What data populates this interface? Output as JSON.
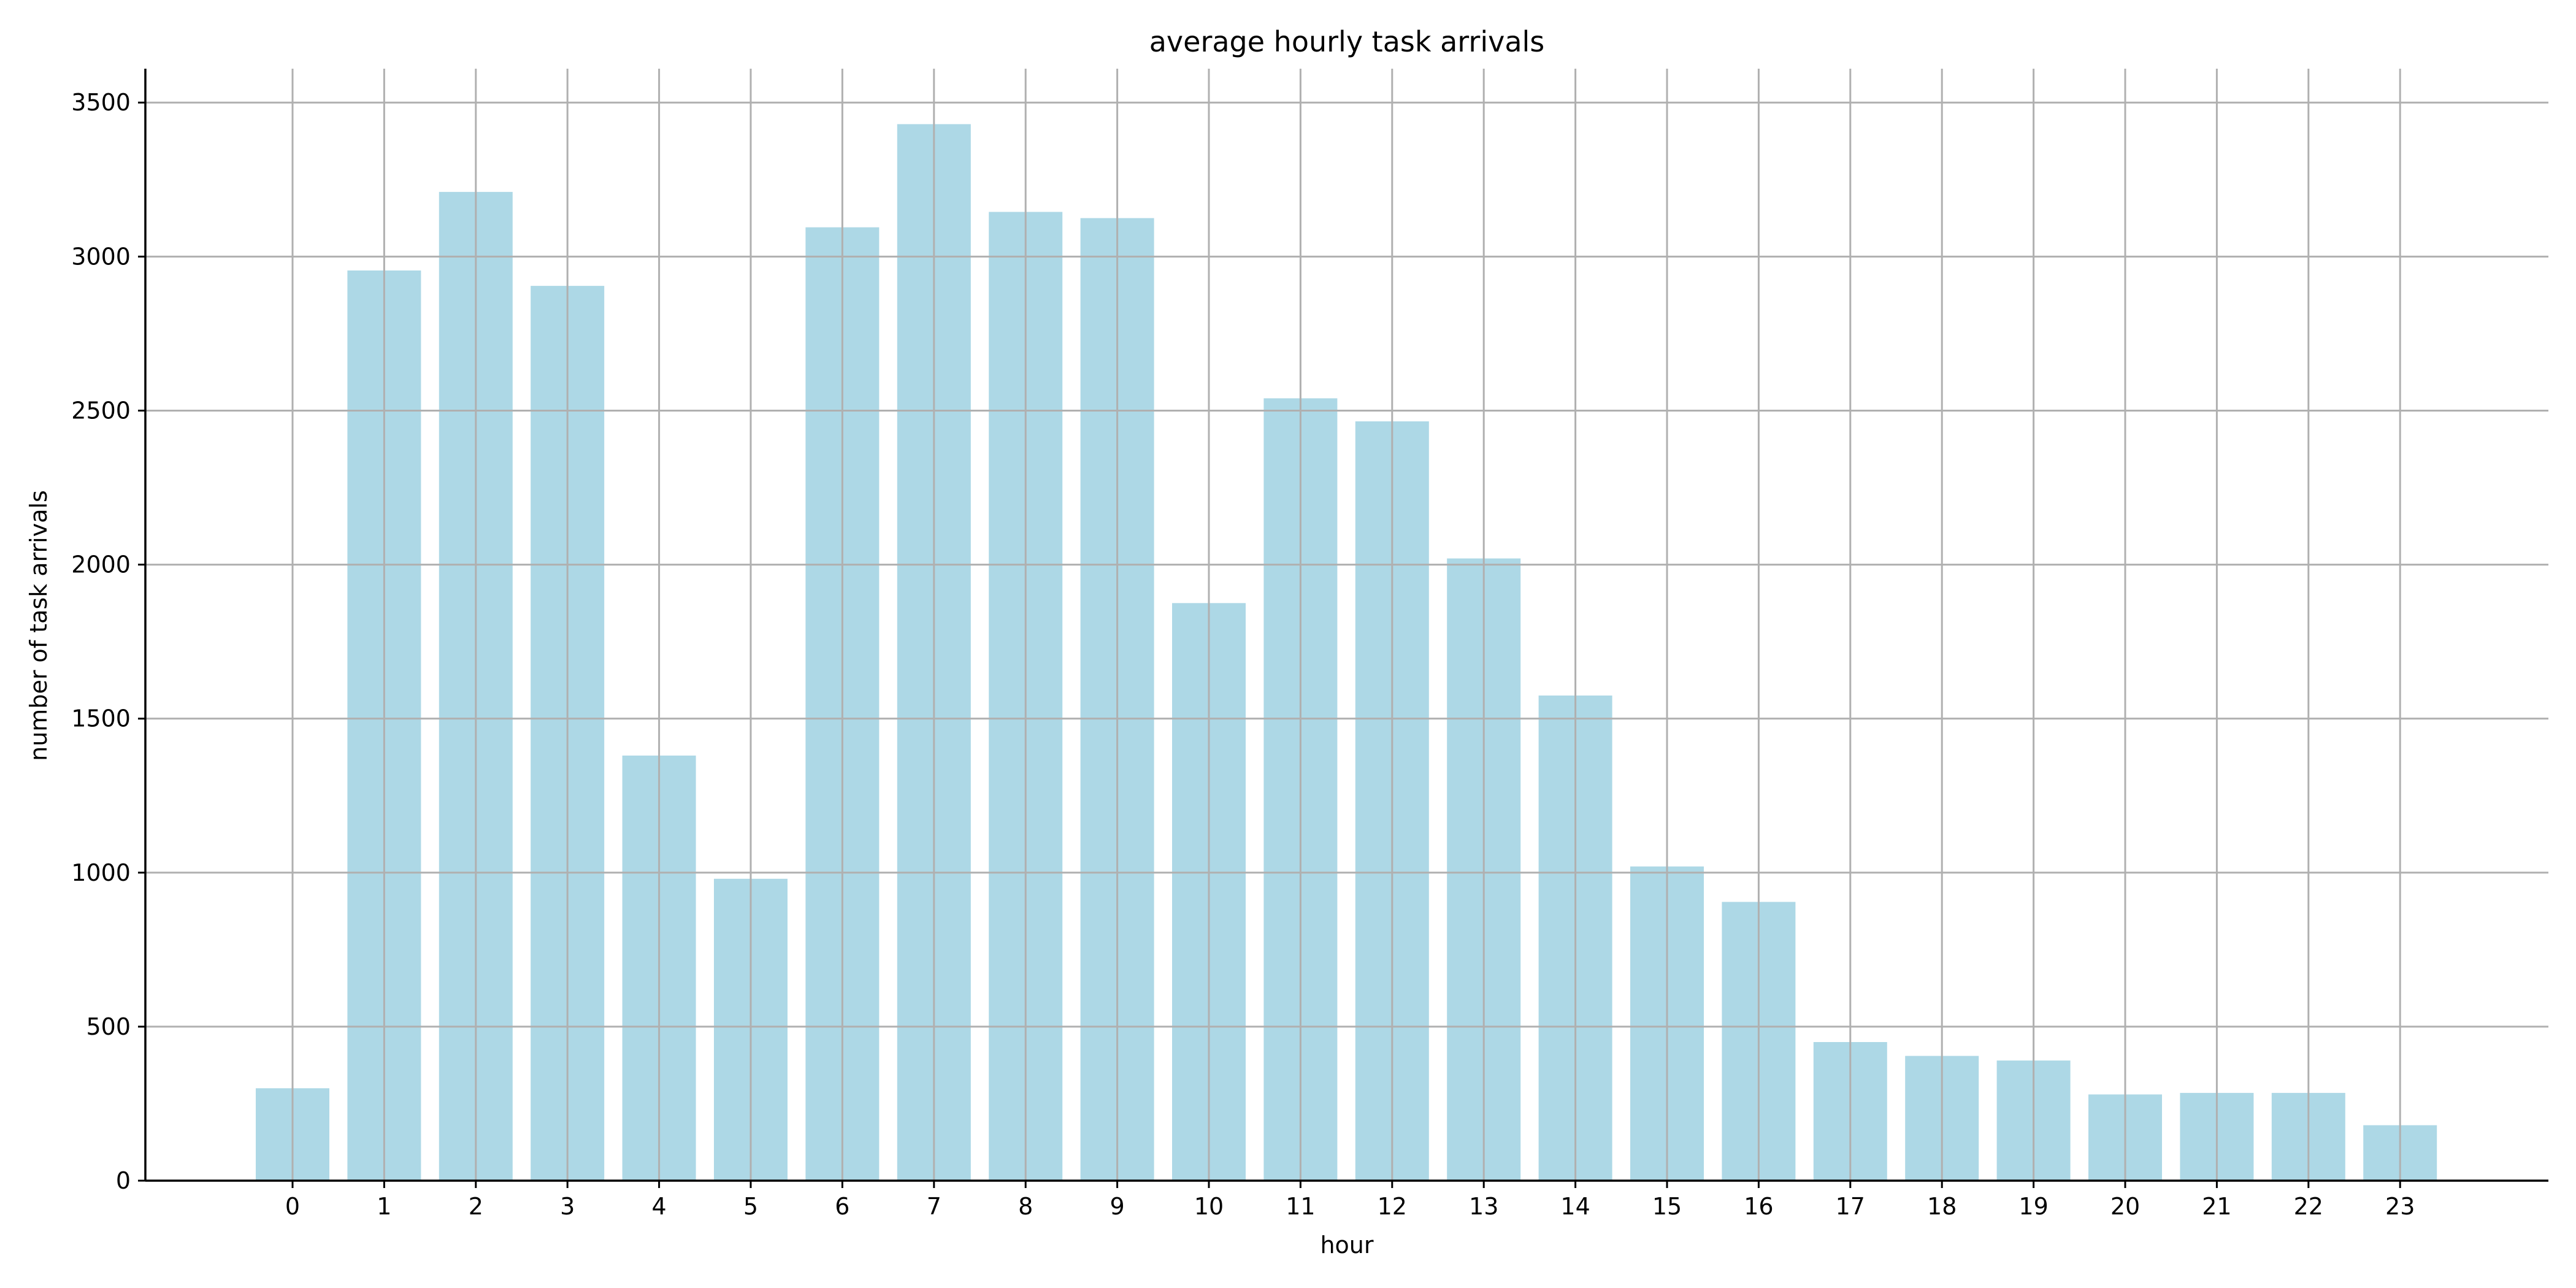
{
  "chart_data": {
    "type": "bar",
    "title": "average hourly task arrivals",
    "xlabel": "hour",
    "ylabel": "number of task arrivals",
    "categories": [
      "0",
      "1",
      "2",
      "3",
      "4",
      "5",
      "6",
      "7",
      "8",
      "9",
      "10",
      "11",
      "12",
      "13",
      "14",
      "15",
      "16",
      "17",
      "18",
      "19",
      "20",
      "21",
      "22",
      "23"
    ],
    "values": [
      300,
      2955,
      3210,
      2905,
      1380,
      980,
      3095,
      3430,
      3145,
      3125,
      1875,
      2540,
      2465,
      2020,
      1575,
      1020,
      905,
      450,
      405,
      390,
      280,
      285,
      285,
      180
    ],
    "yticks": [
      0,
      500,
      1000,
      1500,
      2000,
      2500,
      3000,
      3500
    ],
    "ylim": [
      0,
      3610
    ],
    "grid": true,
    "bar_color": "#add8e6",
    "grid_color": "#b0b0b0",
    "axis_color": "#000000"
  }
}
